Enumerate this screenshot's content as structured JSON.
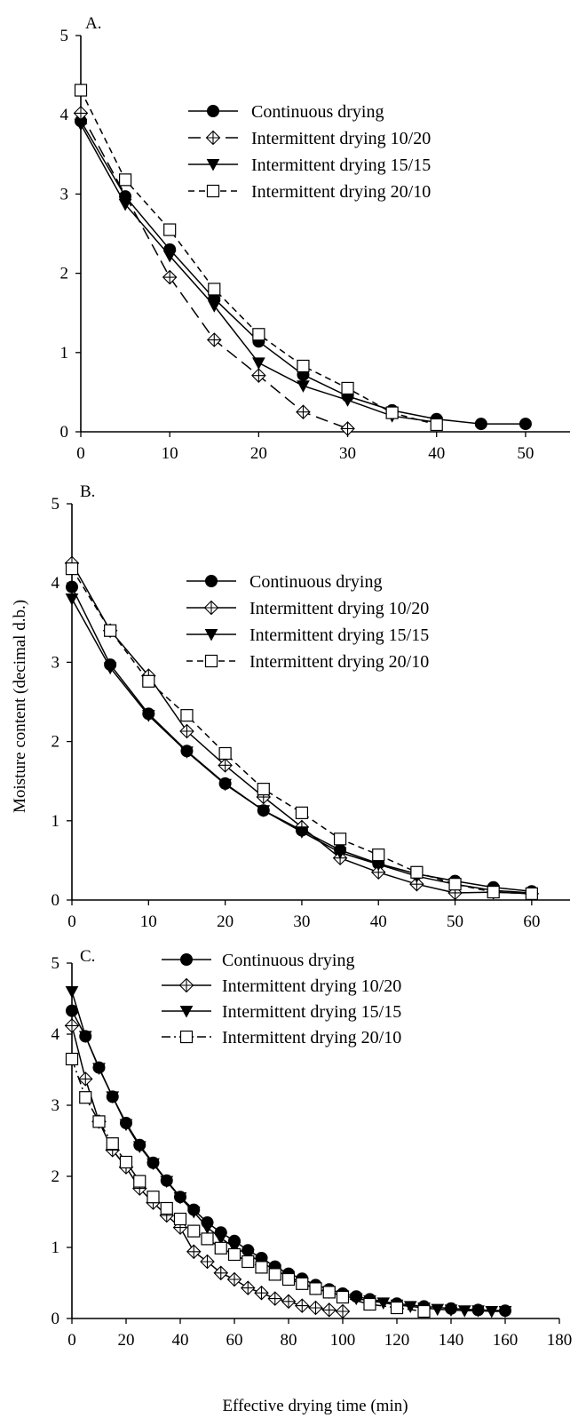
{
  "figure": {
    "ylabel": "Moisture content (decimal d.b.)",
    "xlabel": "Effective drying time (min)"
  },
  "chart_data": [
    {
      "type": "line",
      "panel_label": "A.",
      "xlim": [
        0,
        55
      ],
      "ylim": [
        0,
        5
      ],
      "x_ticks": [
        0,
        10,
        20,
        30,
        40,
        50
      ],
      "y_ticks": [
        0,
        1,
        2,
        3,
        4,
        5
      ],
      "legend_position": "top-right",
      "series": [
        {
          "name": "Continuous drying",
          "marker": "circle-filled",
          "dash": "solid",
          "x": [
            0,
            5,
            10,
            15,
            20,
            25,
            30,
            35,
            40,
            45,
            50
          ],
          "y": [
            3.92,
            2.97,
            2.3,
            1.68,
            1.14,
            0.72,
            0.45,
            0.27,
            0.16,
            0.1,
            0.1
          ]
        },
        {
          "name": "Intermittent drying 10/20",
          "marker": "diamond-cross",
          "dash": "long",
          "x": [
            0,
            10,
            15,
            20,
            25,
            30
          ],
          "y": [
            4.02,
            1.95,
            1.16,
            0.71,
            0.25,
            0.04
          ]
        },
        {
          "name": "Intermittent drying 15/15",
          "marker": "triangle-down",
          "dash": "solid",
          "x": [
            0,
            5,
            10,
            15,
            20,
            25,
            30,
            35,
            40
          ],
          "y": [
            3.88,
            2.87,
            2.22,
            1.59,
            0.87,
            0.58,
            0.4,
            0.2,
            0.12
          ]
        },
        {
          "name": "Intermittent drying 20/10",
          "marker": "square-open",
          "dash": "short",
          "x": [
            0,
            5,
            10,
            15,
            20,
            25,
            30,
            35,
            40
          ],
          "y": [
            4.31,
            3.18,
            2.55,
            1.8,
            1.23,
            0.83,
            0.55,
            0.24,
            0.09
          ]
        }
      ]
    },
    {
      "type": "line",
      "panel_label": "B.",
      "xlim": [
        0,
        65
      ],
      "ylim": [
        0,
        5
      ],
      "x_ticks": [
        0,
        10,
        20,
        30,
        40,
        50,
        60
      ],
      "y_ticks": [
        0,
        1,
        2,
        3,
        4,
        5
      ],
      "legend_position": "top-right",
      "series": [
        {
          "name": "Continuous drying",
          "marker": "circle-filled",
          "dash": "solid",
          "x": [
            0,
            5,
            10,
            15,
            20,
            25,
            30,
            35,
            40,
            45,
            50,
            55,
            60
          ],
          "y": [
            3.95,
            2.97,
            2.35,
            1.88,
            1.47,
            1.13,
            0.88,
            0.63,
            0.46,
            0.33,
            0.24,
            0.16,
            0.11
          ]
        },
        {
          "name": "Intermittent drying 10/20",
          "marker": "diamond-cross",
          "dash": "solid",
          "x": [
            0,
            5,
            10,
            15,
            20,
            25,
            30,
            35,
            40,
            45,
            50,
            55,
            60
          ],
          "y": [
            4.25,
            3.4,
            2.83,
            2.13,
            1.7,
            1.3,
            0.92,
            0.53,
            0.35,
            0.2,
            0.09,
            0.1,
            0.08
          ]
        },
        {
          "name": "Intermittent drying 15/15",
          "marker": "triangle-down",
          "dash": "solid",
          "x": [
            0,
            5,
            10,
            15,
            20,
            25,
            30,
            35,
            40,
            45,
            50,
            55,
            60
          ],
          "y": [
            3.8,
            2.93,
            2.33,
            1.87,
            1.46,
            1.13,
            0.86,
            0.6,
            0.45,
            0.3,
            0.2,
            0.12,
            0.09
          ]
        },
        {
          "name": "Intermittent drying 20/10",
          "marker": "square-open",
          "dash": "short",
          "x": [
            0,
            5,
            10,
            15,
            20,
            25,
            30,
            35,
            40,
            45,
            50,
            55,
            60
          ],
          "y": [
            4.18,
            3.4,
            2.76,
            2.33,
            1.85,
            1.4,
            1.1,
            0.77,
            0.57,
            0.35,
            0.2,
            0.1,
            0.08
          ]
        }
      ]
    },
    {
      "type": "line",
      "panel_label": "C.",
      "xlim": [
        0,
        180
      ],
      "ylim": [
        0,
        5
      ],
      "x_ticks": [
        0,
        20,
        40,
        60,
        80,
        100,
        120,
        140,
        160,
        180
      ],
      "y_ticks": [
        0,
        1,
        2,
        3,
        4,
        5
      ],
      "legend_position": "top-right",
      "series": [
        {
          "name": "Continuous drying",
          "marker": "circle-filled",
          "dash": "solid",
          "x": [
            0,
            5,
            10,
            15,
            20,
            25,
            30,
            35,
            40,
            45,
            50,
            55,
            60,
            65,
            70,
            75,
            80,
            85,
            90,
            95,
            100,
            105,
            110,
            120,
            130,
            140,
            150,
            160
          ],
          "y": [
            4.33,
            3.97,
            3.53,
            3.12,
            2.75,
            2.44,
            2.19,
            1.94,
            1.71,
            1.53,
            1.35,
            1.21,
            1.09,
            0.96,
            0.85,
            0.73,
            0.63,
            0.56,
            0.47,
            0.41,
            0.35,
            0.31,
            0.27,
            0.21,
            0.17,
            0.14,
            0.12,
            0.11
          ]
        },
        {
          "name": "Intermittent drying 10/20",
          "marker": "diamond-cross",
          "dash": "solid",
          "x": [
            0,
            5,
            10,
            15,
            20,
            25,
            30,
            35,
            40,
            45,
            50,
            55,
            60,
            65,
            70,
            75,
            80,
            85,
            90,
            95,
            100
          ],
          "y": [
            4.12,
            3.37,
            2.77,
            2.37,
            2.13,
            1.83,
            1.63,
            1.45,
            1.28,
            0.94,
            0.8,
            0.64,
            0.55,
            0.43,
            0.36,
            0.28,
            0.24,
            0.18,
            0.15,
            0.12,
            0.1
          ]
        },
        {
          "name": "Intermittent drying 15/15",
          "marker": "triangle-down",
          "dash": "solid",
          "x": [
            0,
            5,
            10,
            15,
            20,
            25,
            30,
            35,
            40,
            45,
            50,
            55,
            60,
            65,
            70,
            75,
            80,
            85,
            90,
            95,
            100,
            105,
            110,
            115,
            120,
            125,
            130,
            135,
            140,
            145,
            150,
            155,
            160
          ],
          "y": [
            4.6,
            3.97,
            3.52,
            3.12,
            2.73,
            2.42,
            2.18,
            1.93,
            1.7,
            1.5,
            1.28,
            1.13,
            1.0,
            0.9,
            0.79,
            0.68,
            0.59,
            0.5,
            0.42,
            0.37,
            0.32,
            0.28,
            0.25,
            0.22,
            0.19,
            0.17,
            0.15,
            0.13,
            0.12,
            0.11,
            0.11,
            0.1,
            0.1
          ]
        },
        {
          "name": "Intermittent drying 20/10",
          "marker": "square-open",
          "dash": "dashdot",
          "x": [
            0,
            5,
            10,
            15,
            20,
            25,
            30,
            35,
            40,
            45,
            50,
            55,
            60,
            65,
            70,
            75,
            80,
            85,
            90,
            95,
            100,
            110,
            120,
            130
          ],
          "y": [
            3.65,
            3.11,
            2.77,
            2.46,
            2.2,
            1.93,
            1.71,
            1.55,
            1.4,
            1.23,
            1.12,
            0.99,
            0.9,
            0.8,
            0.72,
            0.62,
            0.55,
            0.49,
            0.42,
            0.37,
            0.3,
            0.2,
            0.15,
            0.1
          ]
        }
      ]
    }
  ]
}
